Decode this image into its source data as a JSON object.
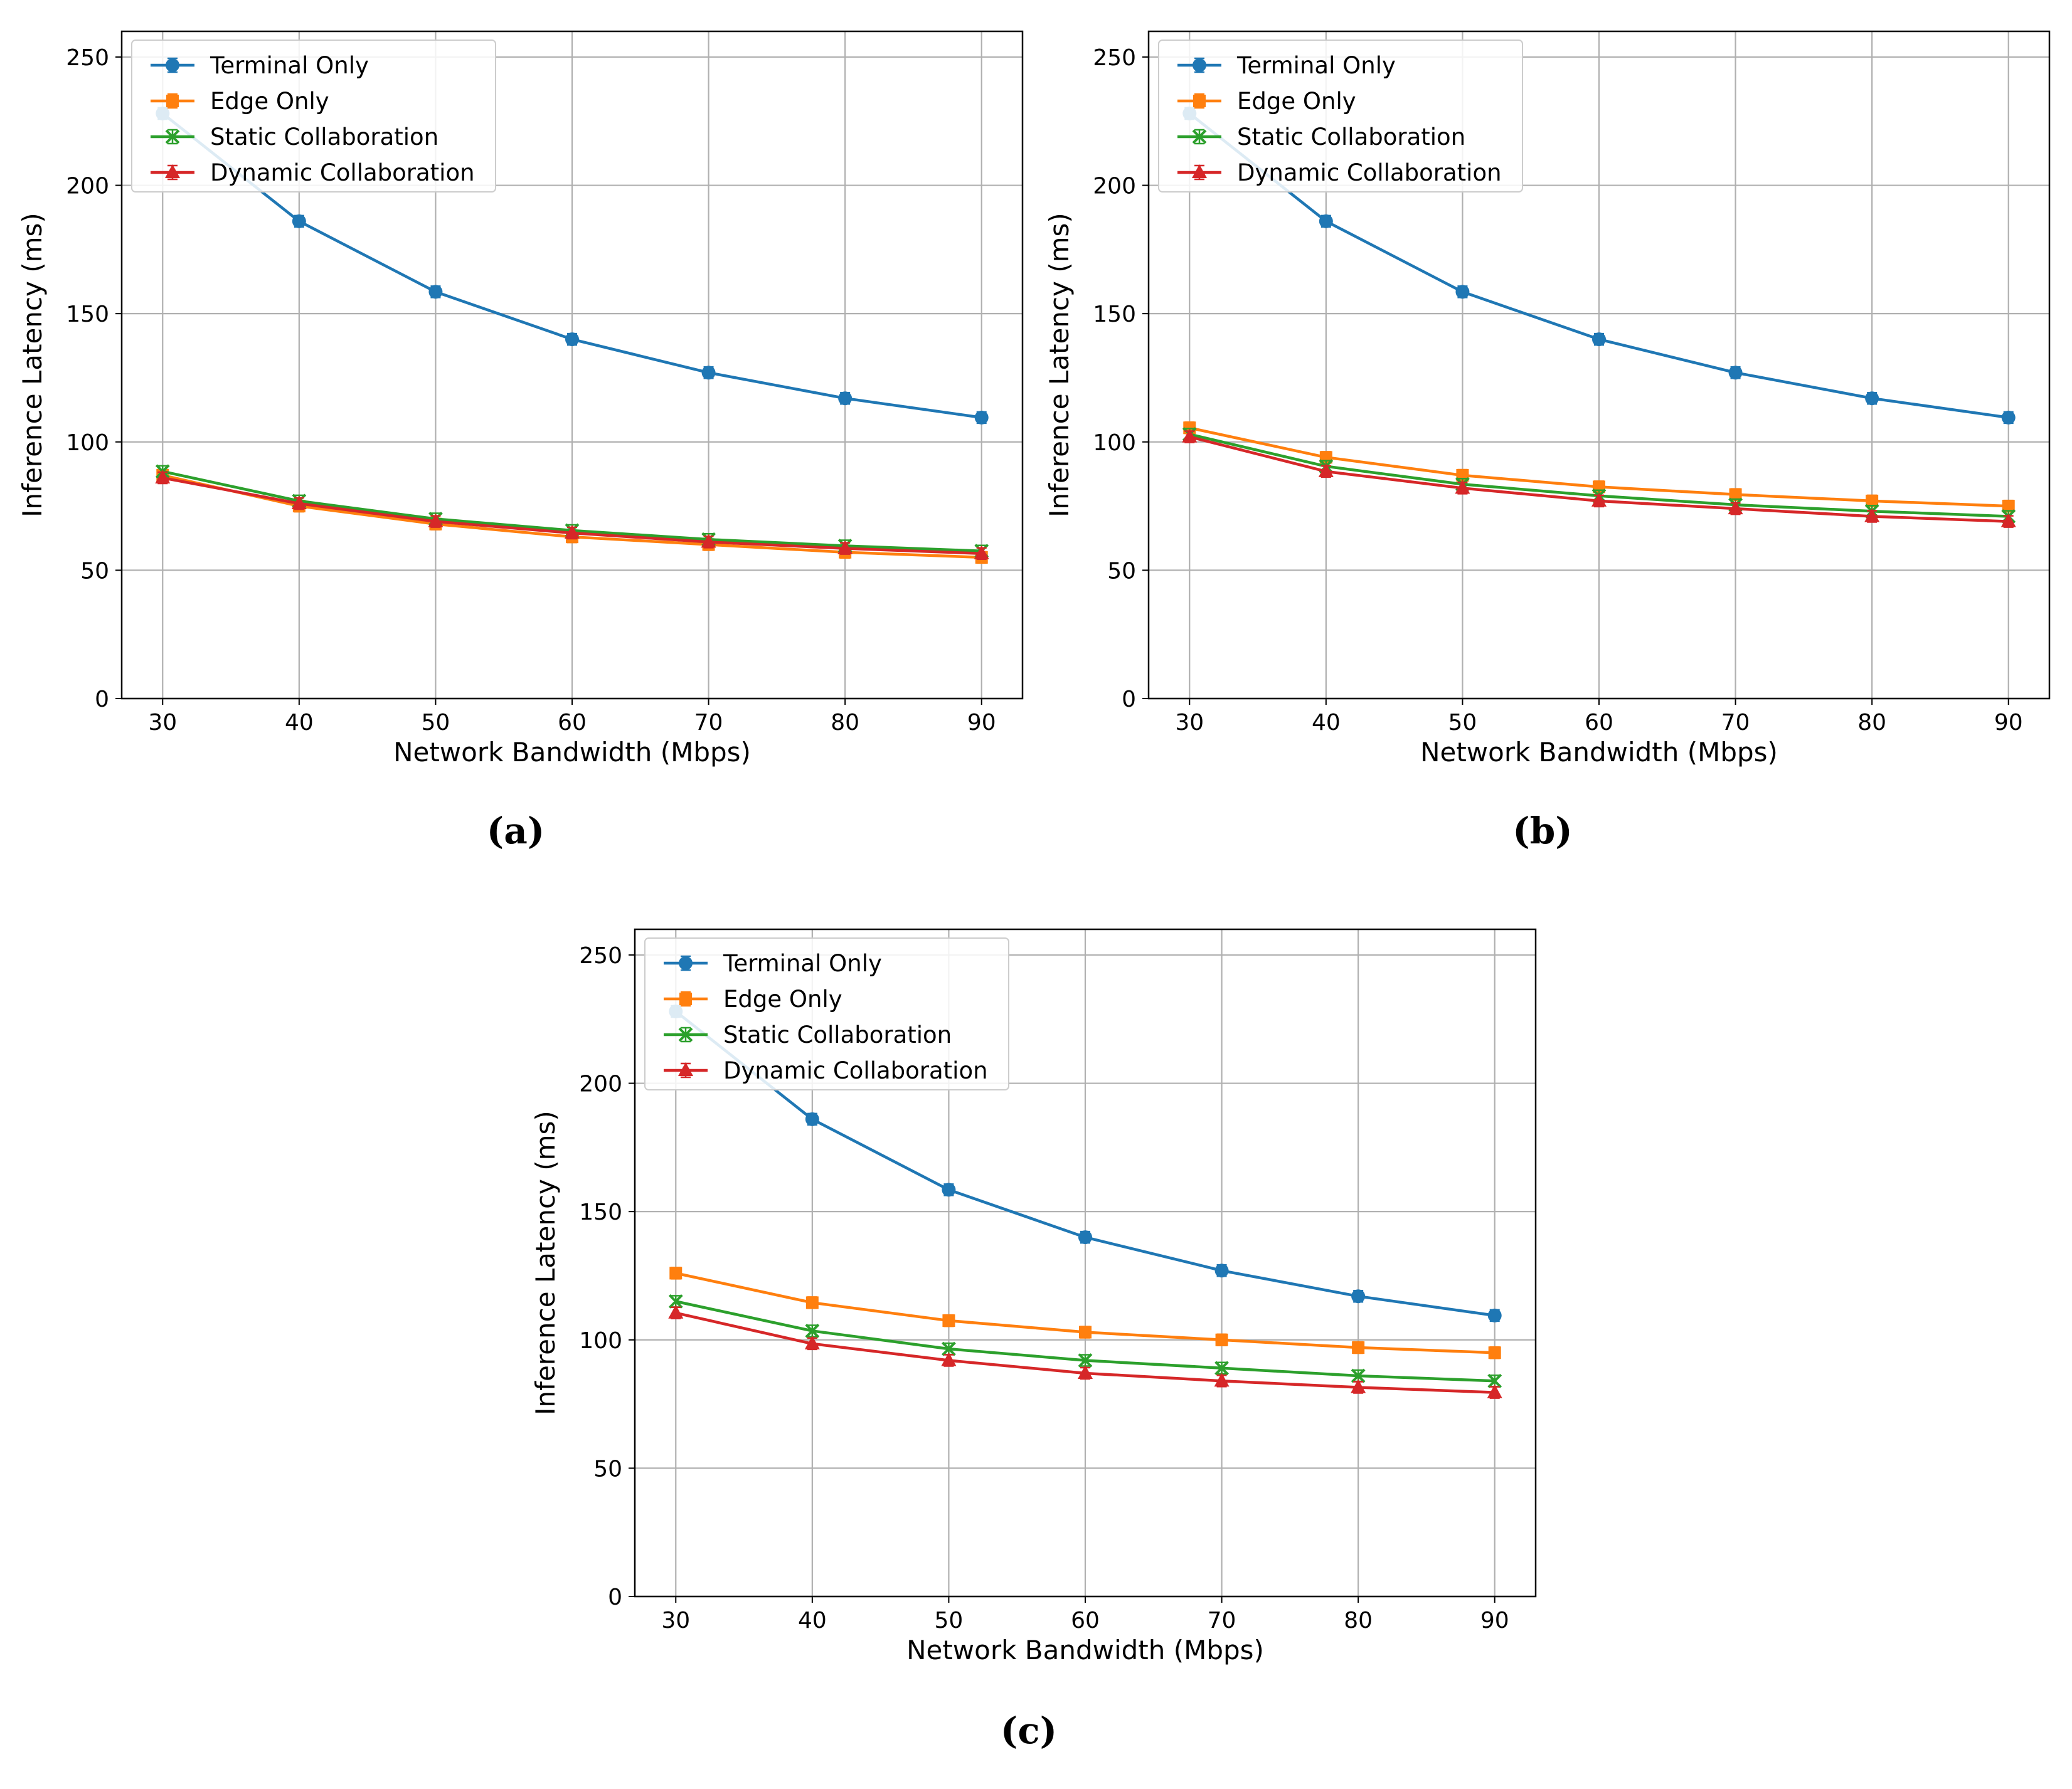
{
  "chart_data": [
    {
      "type": "line",
      "caption": "(a)",
      "xlabel": "Network Bandwidth (Mbps)",
      "ylabel": "Inference Latency (ms)",
      "x": [
        30,
        40,
        50,
        60,
        70,
        80,
        90
      ],
      "xticks": [
        "30",
        "40",
        "50",
        "60",
        "70",
        "80",
        "90"
      ],
      "yticks": [
        "0",
        "50",
        "100",
        "150",
        "200",
        "250"
      ],
      "xlim": [
        27,
        93
      ],
      "ylim": [
        0,
        260
      ],
      "grid": true,
      "legend_position": "top-left",
      "series": [
        {
          "name": "Terminal Only",
          "marker": "circle",
          "color": "#1f77b4",
          "values": [
            228,
            186,
            158.5,
            140,
            127,
            117,
            109.5
          ]
        },
        {
          "name": "Edge Only",
          "marker": "square",
          "color": "#ff7f0e",
          "values": [
            87,
            75,
            68,
            63,
            60,
            57,
            55
          ]
        },
        {
          "name": "Static Collaboration",
          "marker": "x",
          "color": "#2ca02c",
          "values": [
            88.5,
            77,
            70,
            65.5,
            62,
            59.5,
            57.5
          ]
        },
        {
          "name": "Dynamic Collaboration",
          "marker": "triangle",
          "color": "#d62728",
          "values": [
            86,
            76,
            69,
            64.5,
            61,
            58.5,
            56.5
          ]
        }
      ]
    },
    {
      "type": "line",
      "caption": "(b)",
      "xlabel": "Network Bandwidth (Mbps)",
      "ylabel": "Inference Latency (ms)",
      "x": [
        30,
        40,
        50,
        60,
        70,
        80,
        90
      ],
      "xticks": [
        "30",
        "40",
        "50",
        "60",
        "70",
        "80",
        "90"
      ],
      "yticks": [
        "0",
        "50",
        "100",
        "150",
        "200",
        "250"
      ],
      "xlim": [
        27,
        93
      ],
      "ylim": [
        0,
        260
      ],
      "grid": true,
      "legend_position": "top-left",
      "series": [
        {
          "name": "Terminal Only",
          "marker": "circle",
          "color": "#1f77b4",
          "values": [
            228,
            186,
            158.5,
            140,
            127,
            117,
            109.5
          ]
        },
        {
          "name": "Edge Only",
          "marker": "square",
          "color": "#ff7f0e",
          "values": [
            105.5,
            94,
            87,
            82.5,
            79.5,
            77,
            75
          ]
        },
        {
          "name": "Static Collaboration",
          "marker": "x",
          "color": "#2ca02c",
          "values": [
            103,
            90.5,
            83.5,
            79,
            75.5,
            73,
            71
          ]
        },
        {
          "name": "Dynamic Collaboration",
          "marker": "triangle",
          "color": "#d62728",
          "values": [
            102,
            88.5,
            82,
            77,
            74,
            71,
            69
          ]
        }
      ]
    },
    {
      "type": "line",
      "caption": "(c)",
      "xlabel": "Network Bandwidth (Mbps)",
      "ylabel": "Inference Latency (ms)",
      "x": [
        30,
        40,
        50,
        60,
        70,
        80,
        90
      ],
      "xticks": [
        "30",
        "40",
        "50",
        "60",
        "70",
        "80",
        "90"
      ],
      "yticks": [
        "0",
        "50",
        "100",
        "150",
        "200",
        "250"
      ],
      "xlim": [
        27,
        93
      ],
      "ylim": [
        0,
        260
      ],
      "grid": true,
      "legend_position": "top-left",
      "series": [
        {
          "name": "Terminal Only",
          "marker": "circle",
          "color": "#1f77b4",
          "values": [
            228,
            186,
            158.5,
            140,
            127,
            117,
            109.5
          ]
        },
        {
          "name": "Edge Only",
          "marker": "square",
          "color": "#ff7f0e",
          "values": [
            126,
            114.5,
            107.5,
            103,
            100,
            97,
            95
          ]
        },
        {
          "name": "Static Collaboration",
          "marker": "x",
          "color": "#2ca02c",
          "values": [
            115,
            103.5,
            96.5,
            92,
            89,
            86,
            84
          ]
        },
        {
          "name": "Dynamic Collaboration",
          "marker": "triangle",
          "color": "#d62728",
          "values": [
            110.5,
            98.5,
            92,
            87,
            84,
            81.5,
            79.5
          ]
        }
      ]
    }
  ]
}
